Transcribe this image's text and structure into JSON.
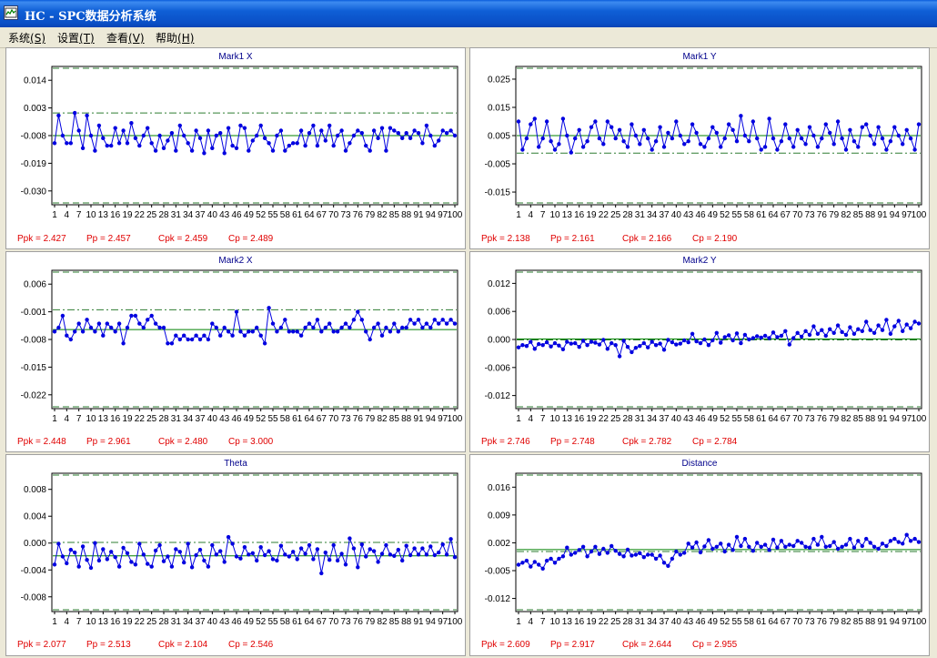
{
  "window": {
    "title": "HC  -  SPC数据分析系统",
    "icon": "chart-window-icon"
  },
  "menu": [
    {
      "label": "系统",
      "key": "(S)"
    },
    {
      "label": "设置",
      "key": "(T)"
    },
    {
      "label": "查看",
      "key": "(V)"
    },
    {
      "label": "帮助",
      "key": "(H)"
    }
  ],
  "colors": {
    "series": "#0000e0",
    "center_line": "#008000",
    "limit_line": "#2e7d32",
    "stats_text": "#e00000",
    "title_text": "#00008b"
  },
  "chart_data": [
    {
      "type": "line",
      "title": "Mark1 X",
      "x_tick_labels": [
        "1",
        "4",
        "7",
        "10",
        "13",
        "16",
        "19",
        "22",
        "25",
        "28",
        "31",
        "34",
        "37",
        "40",
        "43",
        "46",
        "49",
        "52",
        "55",
        "58",
        "61",
        "64",
        "67",
        "70",
        "73",
        "76",
        "79",
        "82",
        "85",
        "88",
        "91",
        "94",
        "97",
        "100"
      ],
      "y_tick_labels": [
        "0.014",
        "0.003",
        "-0.008",
        "-0.019",
        "-0.030"
      ],
      "ylim": [
        -0.0355,
        0.0195
      ],
      "center": -0.008,
      "control_limits": [
        -0.0355,
        0.0195
      ],
      "spec_line": 0.001,
      "series": [
        {
          "values": [
            -0.011,
            0.0,
            -0.008,
            -0.011,
            -0.011,
            0.001,
            -0.006,
            -0.013,
            0.0,
            -0.008,
            -0.014,
            -0.004,
            -0.009,
            -0.012,
            -0.012,
            -0.005,
            -0.011,
            -0.006,
            -0.011,
            -0.003,
            -0.009,
            -0.012,
            -0.008,
            -0.005,
            -0.011,
            -0.014,
            -0.008,
            -0.013,
            -0.01,
            -0.007,
            -0.014,
            -0.004,
            -0.008,
            -0.011,
            -0.014,
            -0.006,
            -0.009,
            -0.015,
            -0.006,
            -0.013,
            -0.008,
            -0.007,
            -0.015,
            -0.005,
            -0.012,
            -0.013,
            -0.004,
            -0.005,
            -0.014,
            -0.01,
            -0.008,
            -0.004,
            -0.009,
            -0.011,
            -0.014,
            -0.008,
            -0.006,
            -0.014,
            -0.012,
            -0.011,
            -0.011,
            -0.006,
            -0.012,
            -0.007,
            -0.004,
            -0.012,
            -0.006,
            -0.01,
            -0.004,
            -0.012,
            -0.008,
            -0.006,
            -0.014,
            -0.011,
            -0.008,
            -0.006,
            -0.007,
            -0.012,
            -0.014,
            -0.006,
            -0.009,
            -0.005,
            -0.014,
            -0.005,
            -0.006,
            -0.007,
            -0.009,
            -0.007,
            -0.009,
            -0.006,
            -0.007,
            -0.011,
            -0.004,
            -0.008,
            -0.012,
            -0.01,
            -0.006,
            -0.007,
            -0.006,
            -0.008
          ]
        }
      ],
      "stats": {
        "ppk": "Ppk = 2.427",
        "pp": "Pp = 2.457",
        "cpk": "Cpk = 2.459",
        "cp": "Cp = 2.489"
      }
    },
    {
      "type": "line",
      "title": "Mark1 Y",
      "x_tick_labels": [
        "1",
        "4",
        "7",
        "10",
        "13",
        "16",
        "19",
        "22",
        "25",
        "28",
        "31",
        "34",
        "37",
        "40",
        "43",
        "46",
        "49",
        "52",
        "55",
        "58",
        "61",
        "64",
        "67",
        "70",
        "73",
        "76",
        "79",
        "82",
        "85",
        "88",
        "91",
        "94",
        "97",
        "100"
      ],
      "y_tick_labels": [
        "0.025",
        "0.015",
        "0.005",
        "-0.005",
        "-0.015"
      ],
      "ylim": [
        -0.0195,
        0.0295
      ],
      "center": 0.005,
      "control_limits": [
        -0.0195,
        0.0295
      ],
      "spec_line": -0.0012,
      "series": [
        {
          "values": [
            0.01,
            0.0,
            0.004,
            0.009,
            0.011,
            0.001,
            0.004,
            0.01,
            0.003,
            0.0,
            0.002,
            0.011,
            0.005,
            -0.001,
            0.004,
            0.007,
            0.001,
            0.003,
            0.008,
            0.01,
            0.004,
            0.002,
            0.01,
            0.008,
            0.004,
            0.007,
            0.003,
            0.001,
            0.009,
            0.005,
            0.002,
            0.007,
            0.004,
            0.0,
            0.003,
            0.008,
            0.001,
            0.006,
            0.004,
            0.01,
            0.005,
            0.002,
            0.003,
            0.009,
            0.006,
            0.002,
            0.001,
            0.004,
            0.008,
            0.006,
            0.001,
            0.004,
            0.009,
            0.007,
            0.003,
            0.012,
            0.005,
            0.003,
            0.01,
            0.004,
            0.0,
            0.001,
            0.011,
            0.004,
            0.0,
            0.003,
            0.009,
            0.004,
            0.001,
            0.007,
            0.004,
            0.002,
            0.008,
            0.005,
            0.001,
            0.004,
            0.009,
            0.006,
            0.002,
            0.01,
            0.004,
            0.0,
            0.007,
            0.003,
            0.001,
            0.008,
            0.009,
            0.005,
            0.002,
            0.008,
            0.004,
            0.0,
            0.003,
            0.008,
            0.005,
            0.002,
            0.007,
            0.004,
            0.0,
            0.009
          ]
        }
      ],
      "stats": {
        "ppk": "Ppk = 2.138",
        "pp": "Pp = 2.161",
        "cpk": "Cpk = 2.166",
        "cp": "Cp = 2.190"
      }
    },
    {
      "type": "line",
      "title": "Mark2 X",
      "x_tick_labels": [
        "1",
        "4",
        "7",
        "10",
        "13",
        "16",
        "19",
        "22",
        "25",
        "28",
        "31",
        "34",
        "37",
        "40",
        "43",
        "46",
        "49",
        "52",
        "55",
        "58",
        "61",
        "64",
        "67",
        "70",
        "73",
        "76",
        "79",
        "82",
        "85",
        "88",
        "91",
        "94",
        "97",
        "100"
      ],
      "y_tick_labels": [
        "0.006",
        "-0.001",
        "-0.008",
        "-0.015",
        "-0.022"
      ],
      "ylim": [
        -0.0255,
        0.0095
      ],
      "center": -0.0055,
      "control_limits": [
        -0.0255,
        0.0095
      ],
      "spec_line": -0.0005,
      "series": [
        {
          "values": [
            -0.006,
            -0.005,
            -0.002,
            -0.007,
            -0.008,
            -0.006,
            -0.004,
            -0.006,
            -0.003,
            -0.005,
            -0.006,
            -0.004,
            -0.007,
            -0.004,
            -0.005,
            -0.006,
            -0.004,
            -0.009,
            -0.005,
            -0.002,
            -0.002,
            -0.004,
            -0.005,
            -0.003,
            -0.002,
            -0.004,
            -0.005,
            -0.005,
            -0.009,
            -0.009,
            -0.007,
            -0.008,
            -0.007,
            -0.008,
            -0.008,
            -0.007,
            -0.008,
            -0.007,
            -0.008,
            -0.004,
            -0.005,
            -0.007,
            -0.005,
            -0.006,
            -0.007,
            -0.001,
            -0.006,
            -0.007,
            -0.006,
            -0.006,
            -0.005,
            -0.007,
            -0.009,
            0.0,
            -0.004,
            -0.006,
            -0.005,
            -0.003,
            -0.006,
            -0.006,
            -0.006,
            -0.007,
            -0.005,
            -0.004,
            -0.005,
            -0.003,
            -0.006,
            -0.005,
            -0.004,
            -0.006,
            -0.006,
            -0.005,
            -0.004,
            -0.005,
            -0.003,
            -0.001,
            -0.003,
            -0.006,
            -0.008,
            -0.005,
            -0.004,
            -0.007,
            -0.005,
            -0.006,
            -0.004,
            -0.006,
            -0.005,
            -0.005,
            -0.003,
            -0.004,
            -0.003,
            -0.005,
            -0.004,
            -0.005,
            -0.003,
            -0.004,
            -0.003,
            -0.004,
            -0.003,
            -0.004
          ]
        }
      ],
      "stats": {
        "ppk": "Ppk = 2.448",
        "pp": "Pp = 2.961",
        "cpk": "Cpk = 2.480",
        "cp": "Cp = 3.000"
      }
    },
    {
      "type": "line",
      "title": "Mark2 Y",
      "x_tick_labels": [
        "1",
        "4",
        "7",
        "10",
        "13",
        "16",
        "19",
        "22",
        "25",
        "28",
        "31",
        "34",
        "37",
        "40",
        "43",
        "46",
        "49",
        "52",
        "55",
        "58",
        "61",
        "64",
        "67",
        "70",
        "73",
        "76",
        "79",
        "82",
        "85",
        "88",
        "91",
        "94",
        "97",
        "100"
      ],
      "y_tick_labels": [
        "0.012",
        "0.006",
        "0.000",
        "-0.006",
        "-0.012"
      ],
      "ylim": [
        -0.0148,
        0.0148
      ],
      "center": 0.0001,
      "control_limits": [
        -0.0148,
        0.0148
      ],
      "spec_line": -0.0001,
      "series": [
        {
          "values": [
            -0.0017,
            -0.0012,
            -0.0014,
            -0.0005,
            -0.002,
            -0.001,
            -0.0012,
            -0.0006,
            -0.0015,
            -0.0008,
            -0.0013,
            -0.0021,
            -0.0005,
            -0.0009,
            -0.0008,
            -0.0016,
            -0.0003,
            -0.0012,
            -0.0005,
            -0.0007,
            -0.0011,
            -0.0001,
            -0.002,
            -0.0008,
            -0.0012,
            -0.0036,
            -0.0003,
            -0.0016,
            -0.0027,
            -0.0018,
            -0.0014,
            -0.0008,
            -0.0017,
            -0.0005,
            -0.0012,
            -0.0009,
            -0.0022,
            -0.0001,
            -0.0006,
            -0.0011,
            -0.0009,
            -0.0002,
            -0.0006,
            0.0012,
            -0.0004,
            -0.0008,
            0.0,
            -0.0012,
            -0.0002,
            0.0014,
            -0.0007,
            0.0005,
            0.0009,
            -0.0002,
            0.0013,
            -0.0008,
            0.001,
            0.0,
            0.0003,
            0.0007,
            0.0004,
            0.0008,
            0.0003,
            0.0015,
            0.0005,
            0.0008,
            0.0018,
            -0.0011,
            0.0003,
            0.0014,
            0.0006,
            0.0018,
            0.001,
            0.0028,
            0.0012,
            0.002,
            0.0008,
            0.0022,
            0.0014,
            0.003,
            0.0016,
            0.001,
            0.0026,
            0.0012,
            0.0022,
            0.0018,
            0.0038,
            0.002,
            0.0014,
            0.003,
            0.002,
            0.0042,
            0.0012,
            0.0028,
            0.004,
            0.0018,
            0.0032,
            0.0024,
            0.0038,
            0.0034
          ]
        }
      ],
      "stats": {
        "ppk": "Ppk = 2.746",
        "pp": "Pp = 2.748",
        "cpk": "Cpk = 2.782",
        "cp": "Cp = 2.784"
      }
    },
    {
      "type": "line",
      "title": "Theta",
      "x_tick_labels": [
        "1",
        "4",
        "7",
        "10",
        "13",
        "16",
        "19",
        "22",
        "25",
        "28",
        "31",
        "34",
        "37",
        "40",
        "43",
        "46",
        "49",
        "52",
        "55",
        "58",
        "61",
        "64",
        "67",
        "70",
        "73",
        "76",
        "79",
        "82",
        "85",
        "88",
        "91",
        "94",
        "97",
        "100"
      ],
      "y_tick_labels": [
        "0.008",
        "0.004",
        "0.000",
        "-0.004",
        "-0.008"
      ],
      "ylim": [
        -0.0102,
        0.0104
      ],
      "center": -0.0019,
      "control_limits": [
        -0.0102,
        0.0104
      ],
      "spec_line": 0.0001,
      "series": [
        {
          "values": [
            -0.0032,
            -0.0001,
            -0.002,
            -0.003,
            -0.001,
            -0.0014,
            -0.0035,
            -0.0005,
            -0.0025,
            -0.0037,
            0.0,
            -0.0026,
            -0.0009,
            -0.0024,
            -0.0013,
            -0.0021,
            -0.0035,
            -0.0007,
            -0.0015,
            -0.0028,
            -0.0032,
            -0.0001,
            -0.0017,
            -0.0031,
            -0.0035,
            -0.0011,
            -0.0003,
            -0.0027,
            -0.002,
            -0.0035,
            -0.0009,
            -0.0013,
            -0.0029,
            -0.0001,
            -0.0036,
            -0.0018,
            -0.001,
            -0.0026,
            -0.0035,
            -0.0003,
            -0.0017,
            -0.0012,
            -0.0028,
            0.0009,
            -0.0001,
            -0.002,
            -0.0023,
            -0.0006,
            -0.0017,
            -0.0015,
            -0.0026,
            -0.0006,
            -0.0018,
            -0.0012,
            -0.0024,
            -0.0026,
            -0.0004,
            -0.0017,
            -0.002,
            -0.0013,
            -0.0024,
            -0.0008,
            -0.0016,
            -0.0003,
            -0.0024,
            -0.0009,
            -0.0045,
            -0.0014,
            -0.0025,
            -0.0003,
            -0.0026,
            -0.0016,
            -0.0032,
            0.0007,
            -0.0008,
            -0.0036,
            -0.0002,
            -0.002,
            -0.0009,
            -0.0012,
            -0.0028,
            -0.0016,
            -0.0003,
            -0.0017,
            -0.0019,
            -0.001,
            -0.0026,
            -0.0004,
            -0.0018,
            -0.0008,
            -0.0017,
            -0.0008,
            -0.0017,
            -0.0005,
            -0.0018,
            -0.0014,
            -0.0002,
            -0.0017,
            0.0006,
            -0.0021
          ]
        }
      ],
      "stats": {
        "ppk": "Ppk = 2.077",
        "pp": "Pp = 2.513",
        "cpk": "Cpk = 2.104",
        "cp": "Cp = 2.546"
      }
    },
    {
      "type": "line",
      "title": "Distance",
      "x_tick_labels": [
        "1",
        "4",
        "7",
        "10",
        "13",
        "16",
        "19",
        "22",
        "25",
        "28",
        "31",
        "34",
        "37",
        "40",
        "43",
        "46",
        "49",
        "52",
        "55",
        "58",
        "61",
        "64",
        "67",
        "70",
        "73",
        "76",
        "79",
        "82",
        "85",
        "88",
        "91",
        "94",
        "97",
        "100"
      ],
      "y_tick_labels": [
        "0.016",
        "0.009",
        "0.002",
        "-0.005",
        "-0.012"
      ],
      "ylim": [
        -0.0153,
        0.0195
      ],
      "center": 0.0003,
      "control_limits": [
        -0.0153,
        0.0195
      ],
      "spec_line": -0.0002,
      "series": [
        {
          "values": [
            -0.0035,
            -0.003,
            -0.0025,
            -0.004,
            -0.0028,
            -0.0035,
            -0.0045,
            -0.0025,
            -0.002,
            -0.003,
            -0.002,
            -0.0014,
            0.0008,
            -0.001,
            -0.0005,
            0.0002,
            0.001,
            -0.0014,
            -0.0002,
            0.001,
            -0.0008,
            0.0005,
            -0.0005,
            0.0012,
            0.0,
            -0.0008,
            -0.0014,
            0.0003,
            -0.0012,
            -0.001,
            -0.0006,
            -0.0016,
            -0.001,
            -0.001,
            -0.002,
            -0.0012,
            -0.003,
            -0.0038,
            -0.002,
            -0.0002,
            -0.001,
            -0.0005,
            0.0018,
            0.0008,
            0.0021,
            -0.0004,
            0.0011,
            0.0027,
            0.0005,
            0.001,
            0.0018,
            -0.0002,
            0.0015,
            0.0002,
            0.0035,
            0.0012,
            0.003,
            0.001,
            0.0,
            0.002,
            0.001,
            0.0015,
            0.0002,
            0.0028,
            0.0008,
            0.0025,
            0.001,
            0.0015,
            0.0012,
            0.0025,
            0.002,
            0.001,
            0.0008,
            0.003,
            0.0015,
            0.0035,
            0.001,
            0.0012,
            0.0022,
            0.0005,
            0.001,
            0.0015,
            0.003,
            0.0008,
            0.0025,
            0.0012,
            0.003,
            0.002,
            0.001,
            0.0005,
            0.0018,
            0.0012,
            0.0025,
            0.003,
            0.0022,
            0.0018,
            0.004,
            0.0025,
            0.003,
            0.0022
          ]
        }
      ],
      "stats": {
        "ppk": "Ppk = 2.609",
        "pp": "Pp = 2.917",
        "cpk": "Cpk = 2.644",
        "cp": "Cp = 2.955"
      }
    }
  ]
}
